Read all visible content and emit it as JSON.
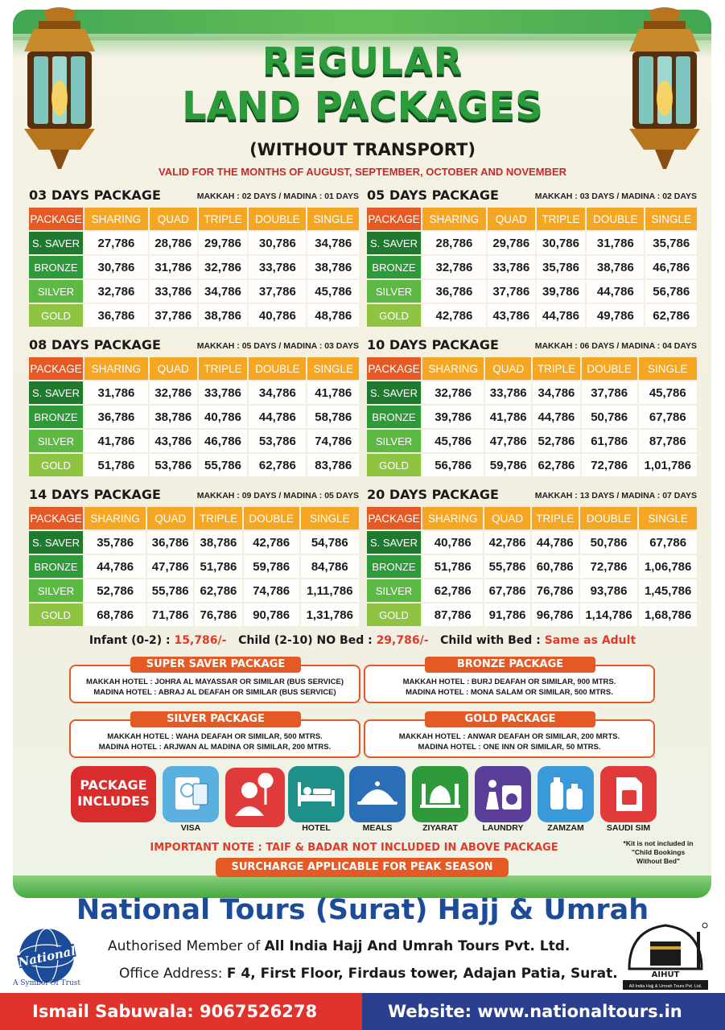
{
  "title": {
    "line1": "REGULAR",
    "line2": "LAND PACKAGES",
    "line3": "(WITHOUT TRANSPORT)",
    "validity": "VALID FOR THE MONTHS OF AUGUST, SEPTEMBER, OCTOBER AND NOVEMBER"
  },
  "columns": [
    "PACKAGE",
    "SHARING",
    "QUAD",
    "TRIPLE",
    "DOUBLE",
    "SINGLE"
  ],
  "packages": [
    {
      "title": "03 DAYS PACKAGE",
      "sub": "MAKKAH : 02 DAYS / MADINA : 01 DAYS",
      "rows": [
        {
          "name": "S. SAVER",
          "values": [
            "27,786",
            "28,786",
            "29,786",
            "30,786",
            "34,786"
          ]
        },
        {
          "name": "BRONZE",
          "values": [
            "30,786",
            "31,786",
            "32,786",
            "33,786",
            "38,786"
          ]
        },
        {
          "name": "SILVER",
          "values": [
            "32,786",
            "33,786",
            "34,786",
            "37,786",
            "45,786"
          ]
        },
        {
          "name": "GOLD",
          "values": [
            "36,786",
            "37,786",
            "38,786",
            "40,786",
            "48,786"
          ]
        }
      ]
    },
    {
      "title": "05 DAYS PACKAGE",
      "sub": "MAKKAH : 03 DAYS / MADINA : 02 DAYS",
      "rows": [
        {
          "name": "S. SAVER",
          "values": [
            "28,786",
            "29,786",
            "30,786",
            "31,786",
            "35,786"
          ]
        },
        {
          "name": "BRONZE",
          "values": [
            "32,786",
            "33,786",
            "35,786",
            "38,786",
            "46,786"
          ]
        },
        {
          "name": "SILVER",
          "values": [
            "36,786",
            "37,786",
            "39,786",
            "44,786",
            "56,786"
          ]
        },
        {
          "name": "GOLD",
          "values": [
            "42,786",
            "43,786",
            "44,786",
            "49,786",
            "62,786"
          ]
        }
      ]
    },
    {
      "title": "08 DAYS PACKAGE",
      "sub": "MAKKAH : 05 DAYS / MADINA : 03 DAYS",
      "rows": [
        {
          "name": "S. SAVER",
          "values": [
            "31,786",
            "32,786",
            "33,786",
            "34,786",
            "41,786"
          ]
        },
        {
          "name": "BRONZE",
          "values": [
            "36,786",
            "38,786",
            "40,786",
            "44,786",
            "58,786"
          ]
        },
        {
          "name": "SILVER",
          "values": [
            "41,786",
            "43,786",
            "46,786",
            "53,786",
            "74,786"
          ]
        },
        {
          "name": "GOLD",
          "values": [
            "51,786",
            "53,786",
            "55,786",
            "62,786",
            "83,786"
          ]
        }
      ]
    },
    {
      "title": "10 DAYS PACKAGE",
      "sub": "MAKKAH : 06 DAYS / MADINA : 04 DAYS",
      "rows": [
        {
          "name": "S. SAVER",
          "values": [
            "32,786",
            "33,786",
            "34,786",
            "37,786",
            "45,786"
          ]
        },
        {
          "name": "BRONZE",
          "values": [
            "39,786",
            "41,786",
            "44,786",
            "50,786",
            "67,786"
          ]
        },
        {
          "name": "SILVER",
          "values": [
            "45,786",
            "47,786",
            "52,786",
            "61,786",
            "87,786"
          ]
        },
        {
          "name": "GOLD",
          "values": [
            "56,786",
            "59,786",
            "62,786",
            "72,786",
            "1,01,786"
          ]
        }
      ]
    },
    {
      "title": "14 DAYS PACKAGE",
      "sub": "MAKKAH : 09 DAYS / MADINA : 05 DAYS",
      "rows": [
        {
          "name": "S. SAVER",
          "values": [
            "35,786",
            "36,786",
            "38,786",
            "42,786",
            "54,786"
          ]
        },
        {
          "name": "BRONZE",
          "values": [
            "44,786",
            "47,786",
            "51,786",
            "59,786",
            "84,786"
          ]
        },
        {
          "name": "SILVER",
          "values": [
            "52,786",
            "55,786",
            "62,786",
            "74,786",
            "1,11,786"
          ]
        },
        {
          "name": "GOLD",
          "values": [
            "68,786",
            "71,786",
            "76,786",
            "90,786",
            "1,31,786"
          ]
        }
      ]
    },
    {
      "title": "20 DAYS PACKAGE",
      "sub": "MAKKAH : 13 DAYS / MADINA : 07 DAYS",
      "rows": [
        {
          "name": "S. SAVER",
          "values": [
            "40,786",
            "42,786",
            "44,786",
            "50,786",
            "67,786"
          ]
        },
        {
          "name": "BRONZE",
          "values": [
            "51,786",
            "55,786",
            "60,786",
            "72,786",
            "1,06,786"
          ]
        },
        {
          "name": "SILVER",
          "values": [
            "62,786",
            "67,786",
            "76,786",
            "93,786",
            "1,45,786"
          ]
        },
        {
          "name": "GOLD",
          "values": [
            "87,786",
            "91,786",
            "96,786",
            "1,14,786",
            "1,68,786"
          ]
        }
      ]
    }
  ],
  "pricing_note": {
    "infant_label": "Infant (0-2) : ",
    "infant_value": "15,786/-",
    "child_nobed_label": "Child (2-10) NO Bed : ",
    "child_nobed_value": "29,786/-",
    "child_bed_label": "Child with Bed : ",
    "child_bed_value": "Same as Adult"
  },
  "hotels": [
    {
      "title": "SUPER SAVER PACKAGE",
      "line1": "MAKKAH HOTEL : JOHRA AL MAYASSAR OR SIMILAR (BUS SERVICE)",
      "line2": "MADINA HOTEL : ABRAJ AL DEAFAH OR SIMILAR (BUS SERVICE)"
    },
    {
      "title": "BRONZE PACKAGE",
      "line1": "MAKKAH HOTEL : BURJ DEAFAH OR SIMILAR, 900 MTRS.",
      "line2": "MADINA HOTEL : MONA SALAM OR SIMILAR, 500 MTRS."
    },
    {
      "title": "SILVER PACKAGE",
      "line1": "MAKKAH HOTEL : WAHA DEAFAH OR SIMILAR, 500 MTRS.",
      "line2": "MADINA HOTEL : ARJWAN AL MADINA OR SIMILAR, 200 MTRS."
    },
    {
      "title": "GOLD PACKAGE",
      "line1": "MAKKAH HOTEL : ANWAR DEAFAH OR SIMILAR, 200 MRTS.",
      "line2": "MADINA HOTEL : ONE INN OR SIMILAR, 50 MTRS."
    }
  ],
  "includes": {
    "label_line1": "PACKAGE",
    "label_line2": "INCLUDES",
    "items": [
      {
        "label": "VISA",
        "icon": "passport-icon",
        "color": "#5ab0de"
      },
      {
        "label": "",
        "icon": "guide-icon",
        "color": "#e03a3a"
      },
      {
        "label": "HOTEL",
        "icon": "bed-icon",
        "color": "#1f8f8a"
      },
      {
        "label": "MEALS",
        "icon": "meal-icon",
        "color": "#2a6fb5"
      },
      {
        "label": "ZIYARAT",
        "icon": "mosque-icon",
        "color": "#2f9a3a"
      },
      {
        "label": "LAUNDRY",
        "icon": "laundry-icon",
        "color": "#5a3e9a"
      },
      {
        "label": "ZAMZAM",
        "icon": "water-bottle-icon",
        "color": "#3a9ad9"
      },
      {
        "label": "SAUDI SIM",
        "icon": "sim-card-icon",
        "color": "#e03a3a"
      }
    ]
  },
  "notes": {
    "important": "IMPORTANT NOTE : TAIF & BADAR NOT INCLUDED IN ABOVE PACKAGE",
    "surcharge": "SURCHARGE APPLICABLE FOR PEAK SEASON",
    "kit_line1": "*Kit is not included in",
    "kit_line2": "\"Child Bookings",
    "kit_line3": "Without Bed\""
  },
  "footer": {
    "company": "National Tours (Surat) Hajj & Umrah",
    "member_prefix": "Authorised Member of ",
    "member_org": "All India Hajj And Umrah Tours Pvt. Ltd.",
    "office_prefix": "Office Address: ",
    "office_address": "F 4, First Floor, Firdaus tower, Adajan Patia, Surat.",
    "logo_text": "National",
    "tagline": "A Symbol Of Trust",
    "aihut": "AIHUT",
    "aihut_caption": "All India Hajj & Umrah Tours Pvt. Ltd.",
    "contact": "Ismail Sabuwala: 9067526278",
    "website": "Website: www.nationaltours.in"
  },
  "colors": {
    "accent_orange": "#e55a24",
    "accent_yellow": "#f5a623",
    "title_green": "#2b9b3b",
    "footer_red": "#e0332b",
    "footer_blue": "#2b3f8f"
  }
}
